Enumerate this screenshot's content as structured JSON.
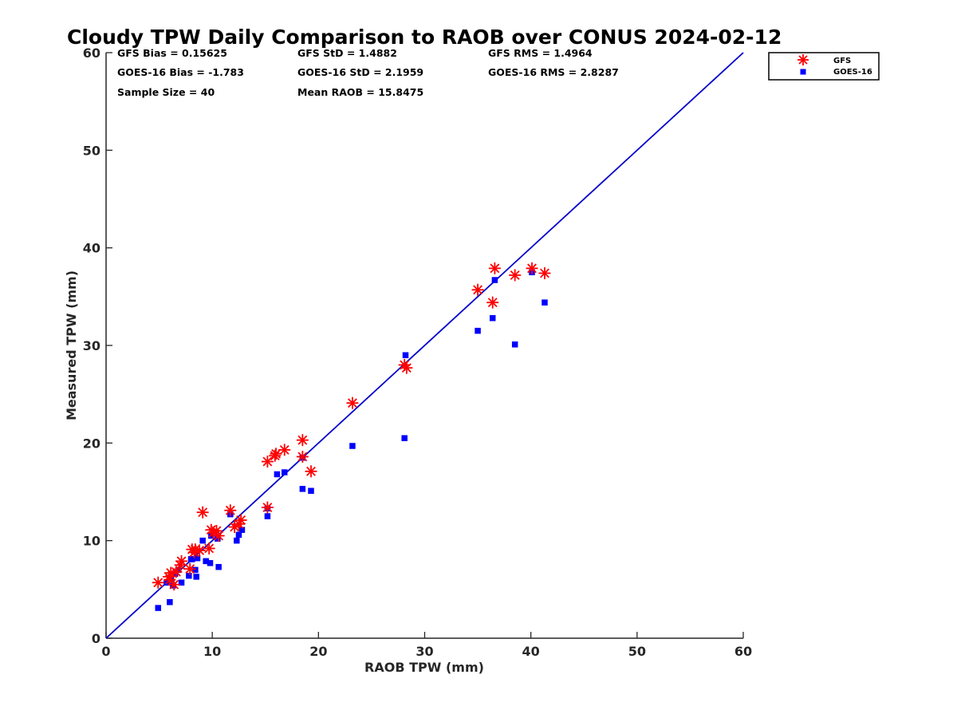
{
  "chart_data": {
    "type": "scatter",
    "title": "Cloudy TPW Daily Comparison to RAOB over CONUS 2024-02-12",
    "xlabel": "RAOB TPW (mm)",
    "ylabel": "Measured TPW (mm)",
    "xlim": [
      0,
      60
    ],
    "ylim": [
      0,
      60
    ],
    "xticks": [
      "0",
      "10",
      "20",
      "30",
      "40",
      "50",
      "60"
    ],
    "yticks": [
      "0",
      "10",
      "20",
      "30",
      "40",
      "50",
      "60"
    ],
    "grid": false,
    "legend_position": "top-right",
    "reference_line": "1:1",
    "stats": {
      "gfs_bias": "GFS Bias = 0.15625",
      "gfs_std": "GFS StD = 1.4882",
      "gfs_rms": "GFS RMS = 1.4964",
      "goes_bias": "GOES-16 Bias = -1.783",
      "goes_std": "GOES-16 StD = 2.1959",
      "goes_rms": "GOES-16 RMS = 2.8287",
      "sample_size": "Sample Size = 40",
      "mean_raob": "Mean RAOB = 15.8475"
    },
    "series": [
      {
        "name": "GFS",
        "marker": "asterisk",
        "color": "#ff0000",
        "points": [
          [
            4.9,
            5.7
          ],
          [
            5.9,
            6.3
          ],
          [
            6.1,
            6.7
          ],
          [
            6.4,
            5.5
          ],
          [
            6.6,
            6.8
          ],
          [
            7.1,
            7.9
          ],
          [
            7.9,
            7.1
          ],
          [
            8.1,
            9.1
          ],
          [
            8.4,
            9.1
          ],
          [
            8.8,
            9.0
          ],
          [
            9.1,
            12.9
          ],
          [
            9.7,
            9.2
          ],
          [
            9.9,
            11.1
          ],
          [
            10.4,
            11.0
          ],
          [
            10.6,
            10.5
          ],
          [
            11.7,
            13.1
          ],
          [
            12.1,
            11.4
          ],
          [
            12.5,
            11.7
          ],
          [
            12.7,
            12.1
          ],
          [
            15.2,
            13.4
          ],
          [
            15.2,
            18.1
          ],
          [
            15.9,
            18.7
          ],
          [
            16.8,
            19.3
          ],
          [
            18.5,
            20.3
          ],
          [
            18.5,
            18.6
          ],
          [
            19.3,
            17.1
          ],
          [
            23.2,
            24.1
          ],
          [
            28.1,
            28.0
          ],
          [
            28.3,
            27.7
          ],
          [
            35.0,
            35.7
          ],
          [
            36.4,
            34.4
          ],
          [
            36.6,
            37.9
          ],
          [
            38.5,
            37.2
          ],
          [
            40.1,
            37.9
          ],
          [
            41.3,
            37.4
          ],
          [
            6.0,
            6.0
          ],
          [
            7.0,
            7.5
          ],
          [
            8.3,
            8.8
          ],
          [
            10.1,
            10.8
          ],
          [
            16.0,
            18.9
          ]
        ]
      },
      {
        "name": "GOES-16",
        "marker": "square",
        "color": "#0000ff",
        "points": [
          [
            4.9,
            3.1
          ],
          [
            5.7,
            5.7
          ],
          [
            6.0,
            3.7
          ],
          [
            6.1,
            6.1
          ],
          [
            6.3,
            5.4
          ],
          [
            6.8,
            7.0
          ],
          [
            7.1,
            5.7
          ],
          [
            7.8,
            6.4
          ],
          [
            8.1,
            8.1
          ],
          [
            8.4,
            7.0
          ],
          [
            8.5,
            6.3
          ],
          [
            8.6,
            8.2
          ],
          [
            9.1,
            10.0
          ],
          [
            9.4,
            7.9
          ],
          [
            9.8,
            7.7
          ],
          [
            9.9,
            10.5
          ],
          [
            10.5,
            10.2
          ],
          [
            10.6,
            7.3
          ],
          [
            11.7,
            12.7
          ],
          [
            12.3,
            10.0
          ],
          [
            12.5,
            10.6
          ],
          [
            12.8,
            11.1
          ],
          [
            15.2,
            13.3
          ],
          [
            15.2,
            12.5
          ],
          [
            16.1,
            16.8
          ],
          [
            16.8,
            17.0
          ],
          [
            18.5,
            15.3
          ],
          [
            18.5,
            18.5
          ],
          [
            19.3,
            15.1
          ],
          [
            23.2,
            19.7
          ],
          [
            28.1,
            20.5
          ],
          [
            28.2,
            29.0
          ],
          [
            35.0,
            31.5
          ],
          [
            36.4,
            32.8
          ],
          [
            36.6,
            36.7
          ],
          [
            38.5,
            30.1
          ],
          [
            40.1,
            37.5
          ],
          [
            41.3,
            34.4
          ],
          [
            8.0,
            8.1
          ],
          [
            6.5,
            6.6
          ]
        ]
      }
    ]
  }
}
